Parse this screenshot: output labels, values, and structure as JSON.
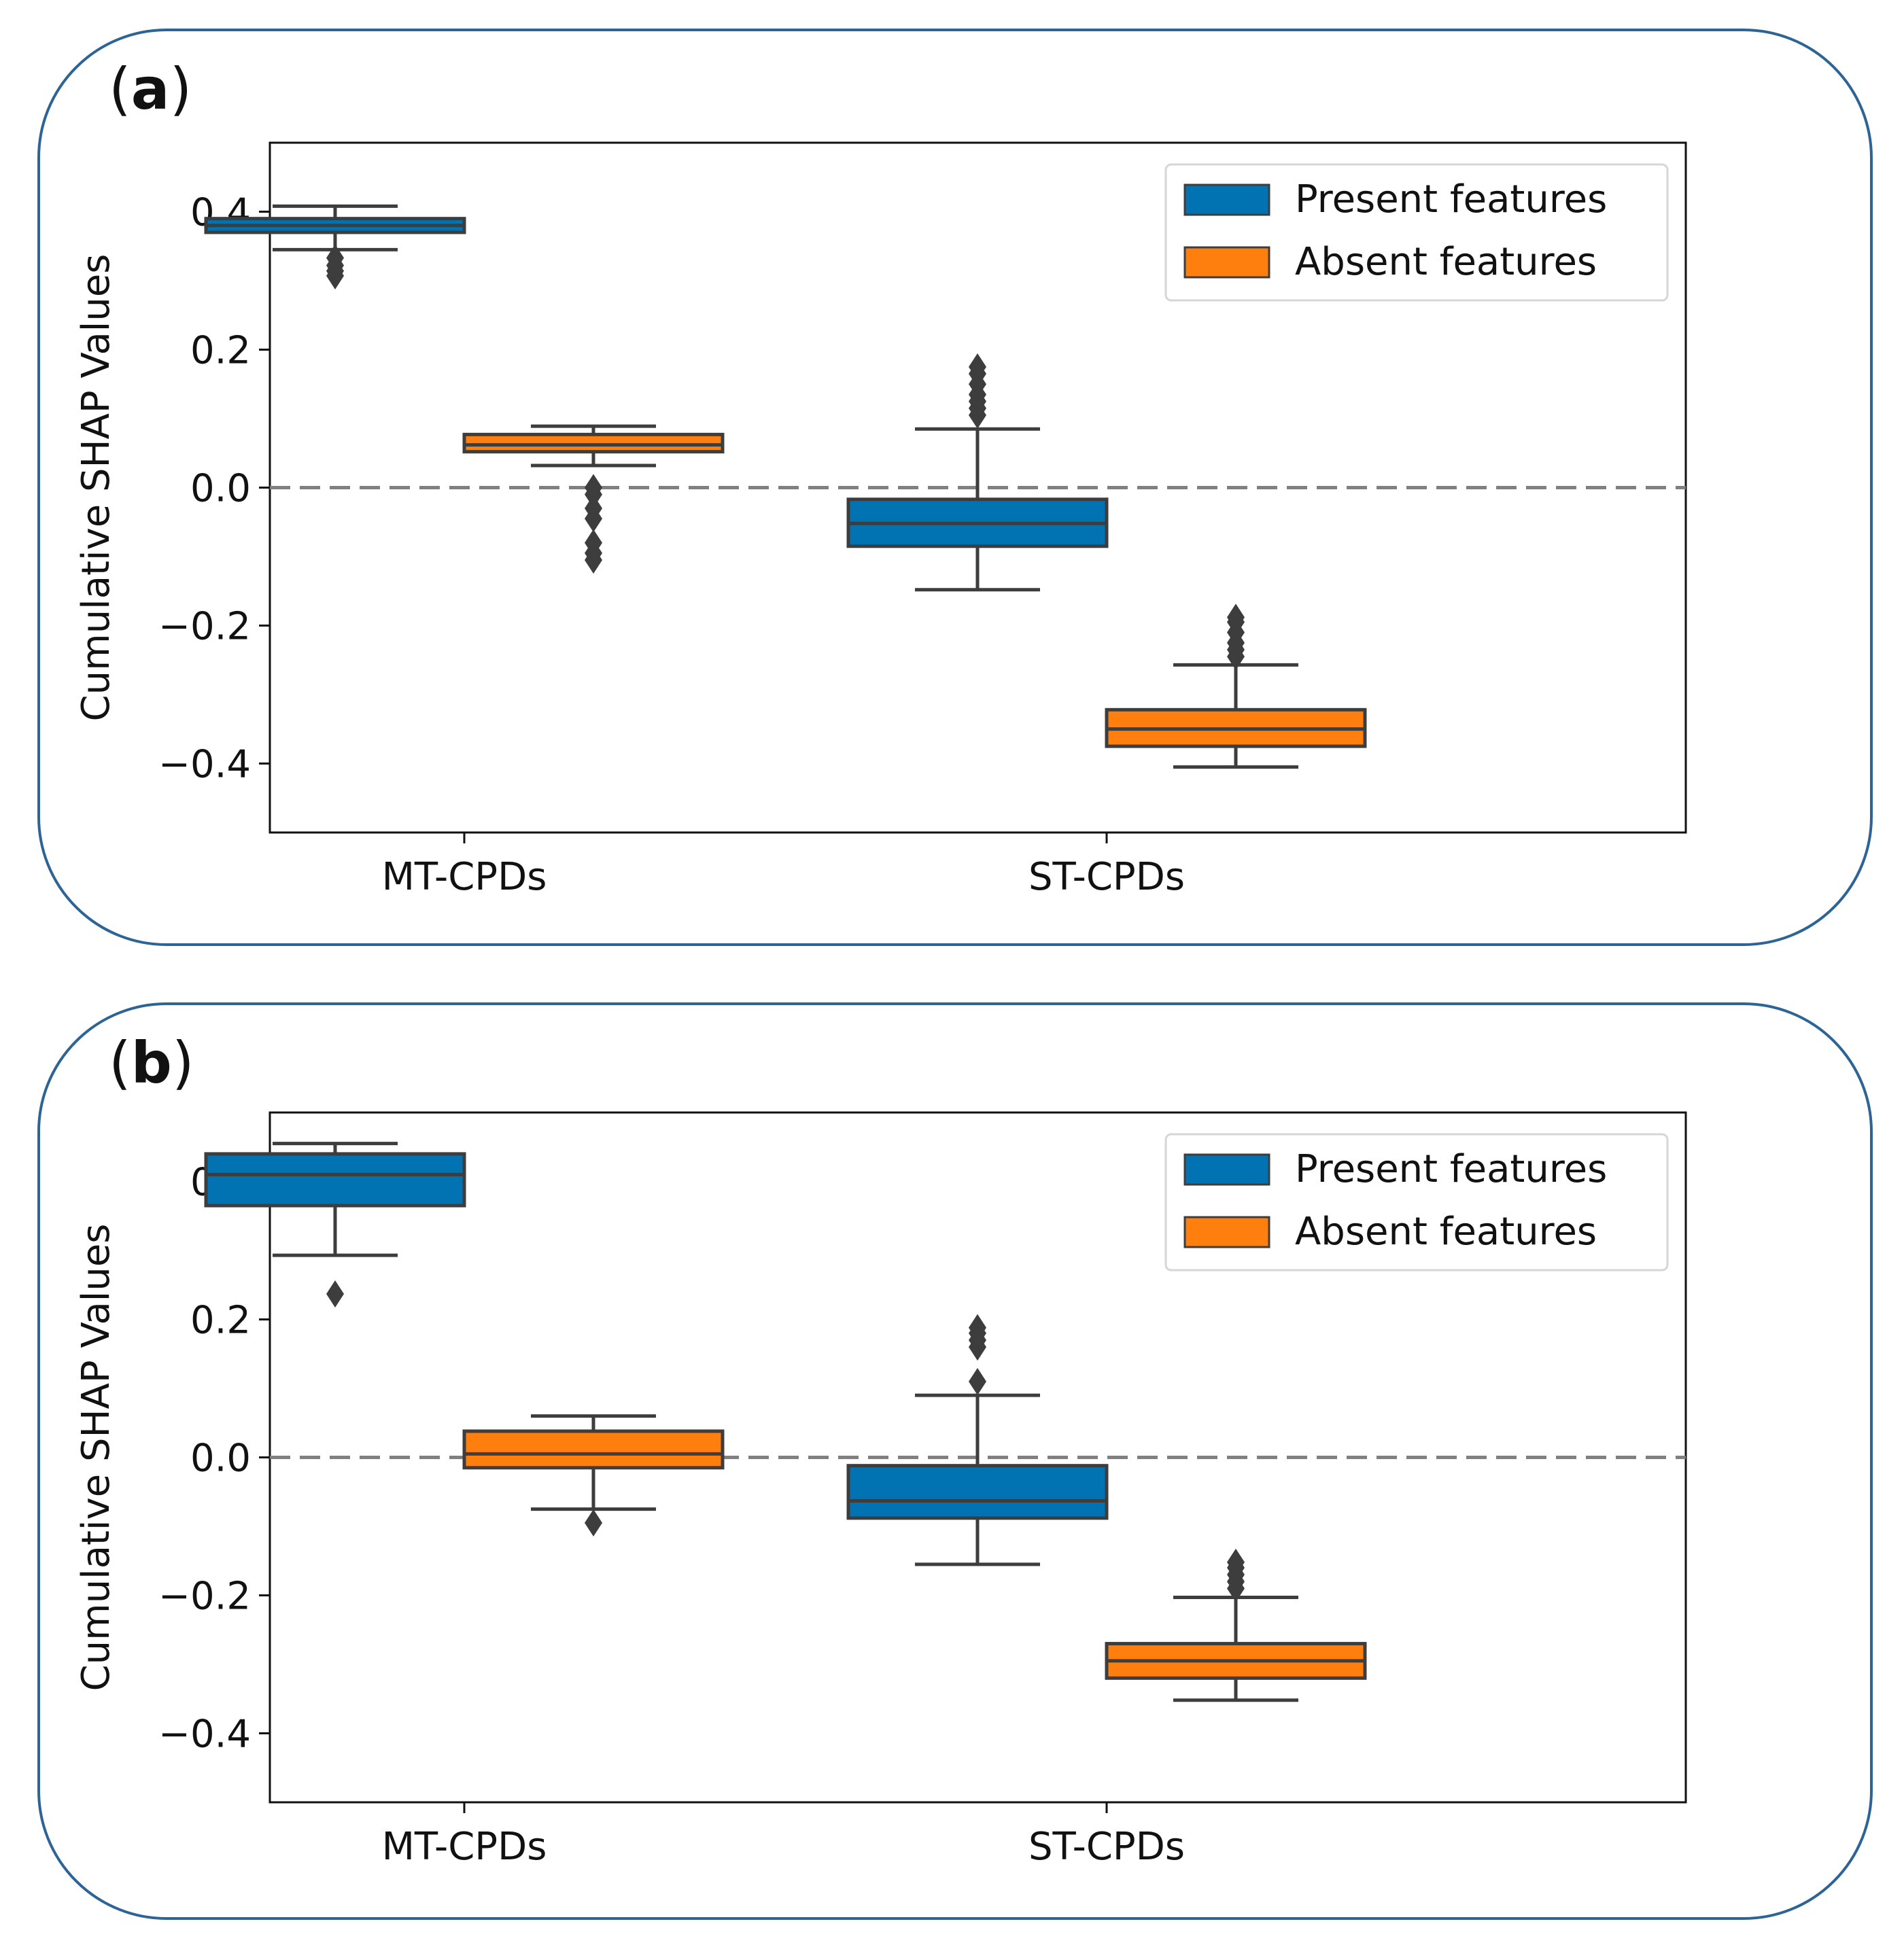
{
  "panels": [
    {
      "label": "a",
      "ylabel": "Cumulative SHAP Values",
      "legend": {
        "items": [
          {
            "name": "Present features",
            "color": "#0173b2"
          },
          {
            "name": "Absent features",
            "color": "#ff7f0e"
          }
        ],
        "position": "top-right"
      },
      "chart_data": {
        "type": "box",
        "categories": [
          "MT-CPDs",
          "ST-CPDs"
        ],
        "ylim": [
          -0.5,
          0.5
        ],
        "yticks": [
          -0.4,
          -0.2,
          0.0,
          0.2,
          0.4
        ],
        "ytick_labels": [
          "−0.4",
          "−0.2",
          "0.0",
          "0.2",
          "0.4"
        ],
        "reference_line": {
          "y": 0.0,
          "style": "dashed"
        },
        "series": [
          {
            "name": "Present features",
            "color": "#0173b2",
            "boxes": [
              {
                "category": "MT-CPDs",
                "whisker_low": 0.345,
                "q1": 0.37,
                "median": 0.38,
                "q3": 0.39,
                "whisker_high": 0.408,
                "outliers": [
                  0.333,
                  0.322,
                  0.314,
                  0.307
                ]
              },
              {
                "category": "ST-CPDs",
                "whisker_low": -0.148,
                "q1": -0.085,
                "median": -0.052,
                "q3": -0.017,
                "whisker_high": 0.085,
                "outliers": [
                  0.105,
                  0.115,
                  0.125,
                  0.135,
                  0.15,
                  0.165,
                  0.175
                ]
              }
            ]
          },
          {
            "name": "Absent features",
            "color": "#ff7f0e",
            "boxes": [
              {
                "category": "MT-CPDs",
                "whisker_low": 0.032,
                "q1": 0.052,
                "median": 0.062,
                "q3": 0.077,
                "whisker_high": 0.089,
                "outliers": [
                  0.0,
                  -0.01,
                  -0.03,
                  -0.045,
                  -0.08,
                  -0.095,
                  -0.105
                ]
              },
              {
                "category": "ST-CPDs",
                "whisker_low": -0.405,
                "q1": -0.375,
                "median": -0.35,
                "q3": -0.322,
                "whisker_high": -0.257,
                "outliers": [
                  -0.245,
                  -0.235,
                  -0.225,
                  -0.21,
                  -0.195,
                  -0.188
                ]
              }
            ]
          }
        ]
      }
    },
    {
      "label": "b",
      "ylabel": "Cumulative SHAP Values",
      "legend": {
        "items": [
          {
            "name": "Present features",
            "color": "#0173b2"
          },
          {
            "name": "Absent features",
            "color": "#ff7f0e"
          }
        ],
        "position": "top-right"
      },
      "chart_data": {
        "type": "box",
        "categories": [
          "MT-CPDs",
          "ST-CPDs"
        ],
        "ylim": [
          -0.5,
          0.5
        ],
        "yticks": [
          -0.4,
          -0.2,
          0.0,
          0.2,
          0.4
        ],
        "ytick_labels": [
          "−0.4",
          "−0.2",
          "0.0",
          "0.2",
          "0.4"
        ],
        "reference_line": {
          "y": 0.0,
          "style": "dashed"
        },
        "series": [
          {
            "name": "Present features",
            "color": "#0173b2",
            "boxes": [
              {
                "category": "MT-CPDs",
                "whisker_low": 0.293,
                "q1": 0.365,
                "median": 0.41,
                "q3": 0.44,
                "whisker_high": 0.455,
                "outliers": [
                  0.237
                ]
              },
              {
                "category": "ST-CPDs",
                "whisker_low": -0.155,
                "q1": -0.088,
                "median": -0.063,
                "q3": -0.012,
                "whisker_high": 0.09,
                "outliers": [
                  0.11,
                  0.16,
                  0.17,
                  0.18,
                  0.188
                ]
              }
            ]
          },
          {
            "name": "Absent features",
            "color": "#ff7f0e",
            "boxes": [
              {
                "category": "MT-CPDs",
                "whisker_low": -0.075,
                "q1": -0.015,
                "median": 0.005,
                "q3": 0.038,
                "whisker_high": 0.06,
                "outliers": [
                  -0.095
                ]
              },
              {
                "category": "ST-CPDs",
                "whisker_low": -0.352,
                "q1": -0.32,
                "median": -0.295,
                "q3": -0.27,
                "whisker_high": -0.203,
                "outliers": [
                  -0.19,
                  -0.18,
                  -0.17,
                  -0.16,
                  -0.152
                ]
              }
            ]
          }
        ]
      }
    }
  ]
}
